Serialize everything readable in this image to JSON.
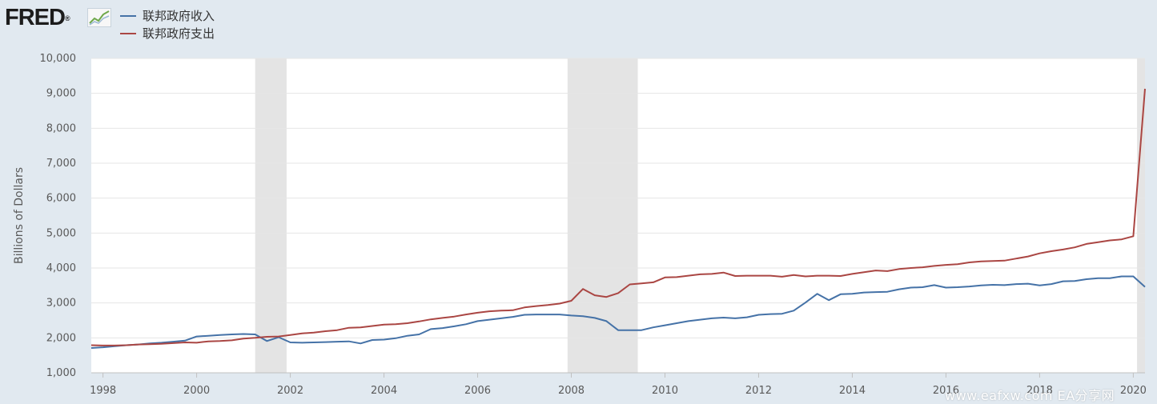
{
  "header": {
    "logo_text": "FRED",
    "logo_mark": "®",
    "logo_icon": "line-chart-icon"
  },
  "watermark": "www.eafxw.com  EA分享网",
  "colors": {
    "background": "#e1e9f0",
    "plot_background": "#ffffff",
    "recession_shading": "#e4e4e4",
    "revenue": "#4572a7",
    "spending": "#aa4643"
  },
  "chart_data": {
    "type": "line",
    "ylabel": "Billions of Dollars",
    "xlabel": "",
    "ylim": [
      1000,
      10000
    ],
    "yticks": [
      1000,
      2000,
      3000,
      4000,
      5000,
      6000,
      7000,
      8000,
      9000,
      10000
    ],
    "ytick_labels": [
      "1,000",
      "2,000",
      "3,000",
      "4,000",
      "5,000",
      "6,000",
      "7,000",
      "8,000",
      "9,000",
      "10,000"
    ],
    "xlim": [
      1997.75,
      2020.25
    ],
    "xticks": [
      1998,
      2000,
      2002,
      2004,
      2006,
      2008,
      2010,
      2012,
      2014,
      2016,
      2018,
      2020
    ],
    "xtick_labels": [
      "1998",
      "2000",
      "2002",
      "2004",
      "2006",
      "2008",
      "2010",
      "2012",
      "2014",
      "2016",
      "2018",
      "2020"
    ],
    "grid": "horizontal",
    "legend_position": "top-left",
    "recessions": [
      [
        2001.25,
        2001.92
      ],
      [
        2007.92,
        2009.42
      ],
      [
        2020.08,
        2020.25
      ]
    ],
    "series": [
      {
        "name": "联邦政府收入",
        "values": [
          [
            1997.75,
            1710
          ],
          [
            1998.0,
            1730
          ],
          [
            1998.25,
            1760
          ],
          [
            1998.5,
            1790
          ],
          [
            1998.75,
            1810
          ],
          [
            1999.0,
            1840
          ],
          [
            1999.25,
            1860
          ],
          [
            1999.5,
            1890
          ],
          [
            1999.75,
            1920
          ],
          [
            2000.0,
            2040
          ],
          [
            2000.25,
            2060
          ],
          [
            2000.5,
            2080
          ],
          [
            2000.75,
            2100
          ],
          [
            2001.0,
            2110
          ],
          [
            2001.25,
            2100
          ],
          [
            2001.5,
            1910
          ],
          [
            2001.75,
            2020
          ],
          [
            2002.0,
            1870
          ],
          [
            2002.25,
            1860
          ],
          [
            2002.5,
            1870
          ],
          [
            2002.75,
            1880
          ],
          [
            2003.0,
            1890
          ],
          [
            2003.25,
            1900
          ],
          [
            2003.5,
            1840
          ],
          [
            2003.75,
            1940
          ],
          [
            2004.0,
            1950
          ],
          [
            2004.25,
            1990
          ],
          [
            2004.5,
            2060
          ],
          [
            2004.75,
            2100
          ],
          [
            2005.0,
            2250
          ],
          [
            2005.25,
            2280
          ],
          [
            2005.5,
            2330
          ],
          [
            2005.75,
            2390
          ],
          [
            2006.0,
            2480
          ],
          [
            2006.25,
            2520
          ],
          [
            2006.5,
            2560
          ],
          [
            2006.75,
            2600
          ],
          [
            2007.0,
            2660
          ],
          [
            2007.25,
            2670
          ],
          [
            2007.5,
            2670
          ],
          [
            2007.75,
            2670
          ],
          [
            2008.0,
            2640
          ],
          [
            2008.25,
            2620
          ],
          [
            2008.5,
            2570
          ],
          [
            2008.75,
            2480
          ],
          [
            2009.0,
            2220
          ],
          [
            2009.25,
            2220
          ],
          [
            2009.5,
            2220
          ],
          [
            2009.75,
            2300
          ],
          [
            2010.0,
            2360
          ],
          [
            2010.25,
            2420
          ],
          [
            2010.5,
            2480
          ],
          [
            2010.75,
            2520
          ],
          [
            2011.0,
            2560
          ],
          [
            2011.25,
            2580
          ],
          [
            2011.5,
            2560
          ],
          [
            2011.75,
            2590
          ],
          [
            2012.0,
            2660
          ],
          [
            2012.25,
            2680
          ],
          [
            2012.5,
            2690
          ],
          [
            2012.75,
            2780
          ],
          [
            2013.0,
            3010
          ],
          [
            2013.25,
            3260
          ],
          [
            2013.5,
            3080
          ],
          [
            2013.75,
            3250
          ],
          [
            2014.0,
            3260
          ],
          [
            2014.25,
            3300
          ],
          [
            2014.5,
            3310
          ],
          [
            2014.75,
            3320
          ],
          [
            2015.0,
            3390
          ],
          [
            2015.25,
            3440
          ],
          [
            2015.5,
            3450
          ],
          [
            2015.75,
            3510
          ],
          [
            2016.0,
            3440
          ],
          [
            2016.25,
            3450
          ],
          [
            2016.5,
            3470
          ],
          [
            2016.75,
            3500
          ],
          [
            2017.0,
            3520
          ],
          [
            2017.25,
            3510
          ],
          [
            2017.5,
            3540
          ],
          [
            2017.75,
            3550
          ],
          [
            2018.0,
            3500
          ],
          [
            2018.25,
            3540
          ],
          [
            2018.5,
            3620
          ],
          [
            2018.75,
            3630
          ],
          [
            2019.0,
            3680
          ],
          [
            2019.25,
            3710
          ],
          [
            2019.5,
            3710
          ],
          [
            2019.75,
            3760
          ],
          [
            2020.0,
            3760
          ],
          [
            2020.25,
            3460
          ]
        ]
      },
      {
        "name": "联邦政府支出",
        "values": [
          [
            1997.75,
            1790
          ],
          [
            1998.0,
            1780
          ],
          [
            1998.25,
            1780
          ],
          [
            1998.5,
            1790
          ],
          [
            1998.75,
            1810
          ],
          [
            1999.0,
            1820
          ],
          [
            1999.25,
            1830
          ],
          [
            1999.5,
            1850
          ],
          [
            1999.75,
            1870
          ],
          [
            2000.0,
            1860
          ],
          [
            2000.25,
            1900
          ],
          [
            2000.5,
            1910
          ],
          [
            2000.75,
            1930
          ],
          [
            2001.0,
            1980
          ],
          [
            2001.25,
            2000
          ],
          [
            2001.5,
            2030
          ],
          [
            2001.75,
            2040
          ],
          [
            2002.0,
            2080
          ],
          [
            2002.25,
            2130
          ],
          [
            2002.5,
            2150
          ],
          [
            2002.75,
            2190
          ],
          [
            2003.0,
            2220
          ],
          [
            2003.25,
            2290
          ],
          [
            2003.5,
            2300
          ],
          [
            2003.75,
            2340
          ],
          [
            2004.0,
            2380
          ],
          [
            2004.25,
            2390
          ],
          [
            2004.5,
            2420
          ],
          [
            2004.75,
            2470
          ],
          [
            2005.0,
            2530
          ],
          [
            2005.25,
            2570
          ],
          [
            2005.5,
            2610
          ],
          [
            2005.75,
            2670
          ],
          [
            2006.0,
            2720
          ],
          [
            2006.25,
            2760
          ],
          [
            2006.5,
            2780
          ],
          [
            2006.75,
            2790
          ],
          [
            2007.0,
            2870
          ],
          [
            2007.25,
            2910
          ],
          [
            2007.5,
            2940
          ],
          [
            2007.75,
            2980
          ],
          [
            2008.0,
            3060
          ],
          [
            2008.25,
            3400
          ],
          [
            2008.5,
            3220
          ],
          [
            2008.75,
            3170
          ],
          [
            2009.0,
            3280
          ],
          [
            2009.25,
            3530
          ],
          [
            2009.5,
            3560
          ],
          [
            2009.75,
            3590
          ],
          [
            2010.0,
            3730
          ],
          [
            2010.25,
            3740
          ],
          [
            2010.5,
            3780
          ],
          [
            2010.75,
            3820
          ],
          [
            2011.0,
            3830
          ],
          [
            2011.25,
            3870
          ],
          [
            2011.5,
            3770
          ],
          [
            2011.75,
            3780
          ],
          [
            2012.0,
            3780
          ],
          [
            2012.25,
            3780
          ],
          [
            2012.5,
            3750
          ],
          [
            2012.75,
            3800
          ],
          [
            2013.0,
            3760
          ],
          [
            2013.25,
            3780
          ],
          [
            2013.5,
            3780
          ],
          [
            2013.75,
            3770
          ],
          [
            2014.0,
            3830
          ],
          [
            2014.25,
            3880
          ],
          [
            2014.5,
            3930
          ],
          [
            2014.75,
            3910
          ],
          [
            2015.0,
            3970
          ],
          [
            2015.25,
            4000
          ],
          [
            2015.5,
            4020
          ],
          [
            2015.75,
            4060
          ],
          [
            2016.0,
            4090
          ],
          [
            2016.25,
            4110
          ],
          [
            2016.5,
            4160
          ],
          [
            2016.75,
            4190
          ],
          [
            2017.0,
            4200
          ],
          [
            2017.25,
            4210
          ],
          [
            2017.5,
            4270
          ],
          [
            2017.75,
            4330
          ],
          [
            2018.0,
            4420
          ],
          [
            2018.25,
            4480
          ],
          [
            2018.5,
            4530
          ],
          [
            2018.75,
            4590
          ],
          [
            2019.0,
            4690
          ],
          [
            2019.25,
            4740
          ],
          [
            2019.5,
            4790
          ],
          [
            2019.75,
            4820
          ],
          [
            2020.0,
            4910
          ],
          [
            2020.25,
            9130
          ]
        ]
      }
    ]
  }
}
